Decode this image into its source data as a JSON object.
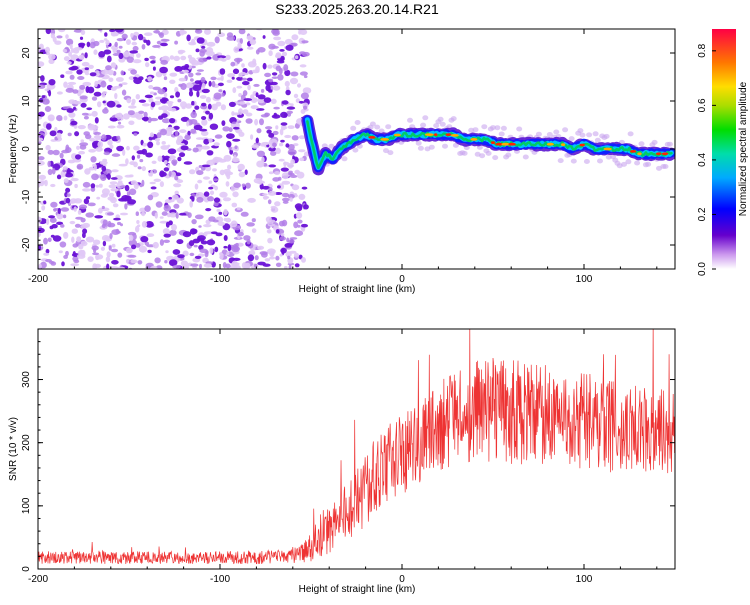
{
  "title": "S233.2025.263.20.14.R21",
  "colors": {
    "signal": "#ee3333",
    "noise_dot": "#7a22dd",
    "axis": "#000000"
  },
  "chart_data": [
    {
      "type": "heatmap",
      "name": "spectrogram",
      "xlabel": "Height of straight line (km)",
      "ylabel": "Frequency (Hz)",
      "xlim": [
        -200,
        150
      ],
      "ylim": [
        -25,
        25
      ],
      "xticks": [
        "-200",
        "-100",
        "0",
        "100"
      ],
      "yticks": [
        "20",
        "10",
        "0",
        "-10",
        "-20"
      ],
      "noise_region_x": [
        -200,
        -52
      ],
      "signal_trace": {
        "x": [
          -52,
          -50,
          -46,
          -42,
          -38,
          -34,
          -30,
          -26,
          -20,
          -14,
          -8,
          -2,
          4,
          10,
          16,
          22,
          28,
          34,
          40,
          46,
          52,
          58,
          64,
          70,
          76,
          82,
          88,
          94,
          100,
          106,
          112,
          118,
          124,
          130,
          136,
          142,
          148
        ],
        "freq": [
          6,
          2,
          -4,
          -1,
          -2,
          0,
          1,
          2,
          3,
          2,
          2,
          3,
          3,
          3,
          3,
          3,
          3,
          2,
          2,
          2,
          1,
          1,
          1,
          1,
          1,
          1,
          1,
          0,
          1,
          0,
          0,
          0,
          0,
          -1,
          -1,
          -1,
          -1
        ]
      },
      "colorbar": {
        "label": "Normalized spectral amplitude",
        "ticks": [
          "0.0",
          "0.2",
          "0.4",
          "0.6",
          "0.8"
        ],
        "range": [
          0,
          0.88
        ]
      }
    },
    {
      "type": "line",
      "name": "snr",
      "xlabel": "Height of straight line (km)",
      "ylabel": "SNR (10 * v/v)",
      "xlim": [
        -200,
        150
      ],
      "ylim": [
        0,
        380
      ],
      "xticks": [
        "-200",
        "-100",
        "0",
        "100"
      ],
      "yticks": [
        "300",
        "200",
        "100",
        "0"
      ],
      "series": [
        {
          "name": "SNR",
          "x": [
            -200,
            -150,
            -100,
            -60,
            -50,
            -45,
            -40,
            -35,
            -30,
            -25,
            -20,
            -15,
            -10,
            -5,
            0,
            10,
            20,
            30,
            40,
            50,
            60,
            70,
            80,
            90,
            100,
            110,
            120,
            130,
            140,
            150
          ],
          "mean": [
            18,
            18,
            18,
            20,
            30,
            55,
            60,
            75,
            90,
            105,
            120,
            140,
            155,
            170,
            180,
            200,
            225,
            240,
            250,
            250,
            250,
            245,
            245,
            240,
            235,
            230,
            225,
            220,
            220,
            215
          ],
          "spread": [
            10,
            10,
            10,
            12,
            25,
            35,
            40,
            45,
            50,
            55,
            60,
            65,
            65,
            65,
            65,
            65,
            70,
            75,
            80,
            85,
            85,
            80,
            80,
            80,
            80,
            75,
            75,
            70,
            70,
            65
          ]
        }
      ]
    }
  ]
}
